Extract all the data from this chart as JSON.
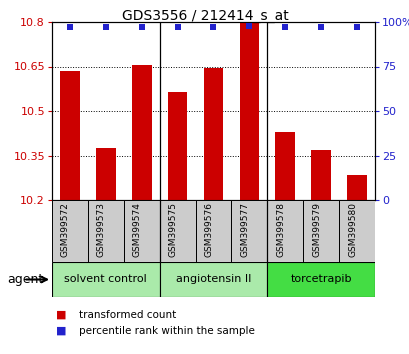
{
  "title": "GDS3556 / 212414_s_at",
  "samples": [
    "GSM399572",
    "GSM399573",
    "GSM399574",
    "GSM399575",
    "GSM399576",
    "GSM399577",
    "GSM399578",
    "GSM399579",
    "GSM399580"
  ],
  "bar_values": [
    10.635,
    10.375,
    10.655,
    10.565,
    10.645,
    10.795,
    10.43,
    10.37,
    10.285
  ],
  "percentile_values": [
    97,
    97,
    97,
    97,
    97,
    98,
    97,
    97,
    97
  ],
  "ymin": 10.2,
  "ymax": 10.8,
  "yticks_left": [
    10.2,
    10.35,
    10.5,
    10.65,
    10.8
  ],
  "yticks_right": [
    0,
    25,
    50,
    75,
    100
  ],
  "bar_color": "#cc0000",
  "dot_color": "#2222cc",
  "bar_width": 0.55,
  "groups": [
    {
      "label": "solvent control",
      "samples": [
        0,
        1,
        2
      ],
      "color": "#aaeaaa"
    },
    {
      "label": "angiotensin II",
      "samples": [
        3,
        4,
        5
      ],
      "color": "#aaeaaa"
    },
    {
      "label": "torcetrapib",
      "samples": [
        6,
        7,
        8
      ],
      "color": "#44dd44"
    }
  ],
  "sample_bg": "#cccccc",
  "agent_label": "agent",
  "legend_bar_label": "transformed count",
  "legend_dot_label": "percentile rank within the sample",
  "plot_bg": "#ffffff",
  "divider_color": "#000000",
  "title_fontsize": 10,
  "tick_fontsize": 8,
  "sample_fontsize": 6.5,
  "group_fontsize": 8,
  "legend_fontsize": 7.5,
  "agent_fontsize": 9
}
